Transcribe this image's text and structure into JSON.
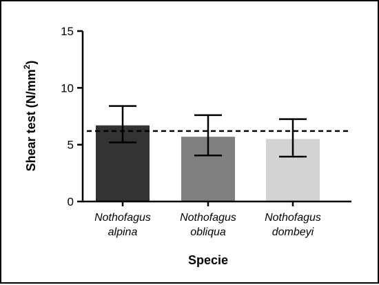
{
  "chart_data": {
    "type": "bar",
    "title": "",
    "xlabel": "Specie",
    "ylabel": "Shear test (N/mm",
    "ylabel_superscript": "2",
    "ylabel_close": ")",
    "ylim": [
      0,
      15
    ],
    "yticks": [
      0,
      5,
      10,
      15
    ],
    "categories": [
      [
        "Nothofagus",
        "alpina"
      ],
      [
        "Nothofagus",
        "obliqua"
      ],
      [
        "Nothofagus",
        "dombeyi"
      ]
    ],
    "values": [
      6.7,
      5.7,
      5.5
    ],
    "error_low": [
      5.2,
      4.05,
      3.95
    ],
    "error_high": [
      8.4,
      7.6,
      7.25
    ],
    "bar_colors": [
      "#333333",
      "#808080",
      "#d3d3d3"
    ],
    "reference_line": 6.2,
    "grid": false,
    "legend": "none"
  }
}
